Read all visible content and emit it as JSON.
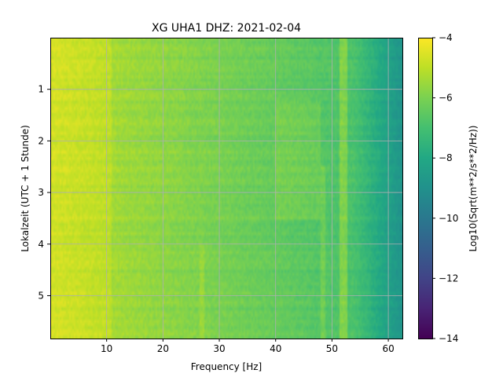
{
  "chart_data": {
    "type": "heatmap",
    "title": "XG UHA1  DHZ: 2021-02-04",
    "xlabel": "Frequency [Hz]",
    "ylabel": "Lokalzeit (UTC + 1 Stunde)",
    "xlim": [
      0.0,
      62.5
    ],
    "ylim": [
      5.83,
      0.0
    ],
    "xticks": [
      10,
      20,
      30,
      40,
      50,
      60
    ],
    "xtick_labels": [
      "10",
      "20",
      "30",
      "40",
      "50",
      "60"
    ],
    "yticks": [
      1,
      2,
      3,
      4,
      5
    ],
    "ytick_labels": [
      "1",
      "2",
      "3",
      "4",
      "5"
    ],
    "grid": true,
    "colormap": "viridis",
    "colorbar": {
      "label": "Log10(Sqrt(m**2/s**2/Hz))",
      "range": [
        -14,
        -4
      ],
      "ticks": [
        -4,
        -6,
        -8,
        -10,
        -12,
        -14
      ],
      "tick_labels": [
        "−4",
        "−6",
        "−8",
        "−10",
        "−12",
        "−14"
      ]
    },
    "spectral_lines_hz": [
      52.0,
      48.5,
      27.0
    ]
  }
}
